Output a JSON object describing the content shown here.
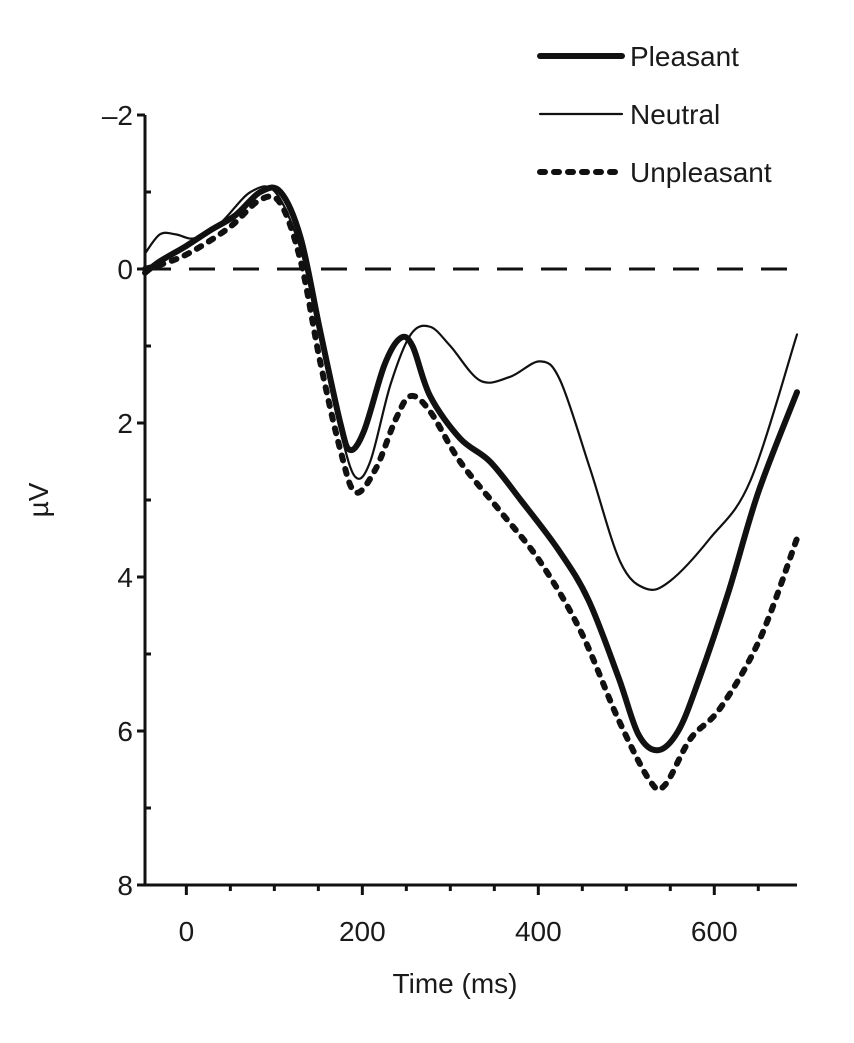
{
  "chart_data": {
    "type": "line",
    "title": "",
    "xlabel": "Time (ms)",
    "ylabel": "µV",
    "xlim": [
      -47,
      694
    ],
    "ylim": [
      -2,
      8
    ],
    "y_inverted": true,
    "xticks": [
      0,
      200,
      400,
      600
    ],
    "yticks": [
      -2,
      0,
      2,
      4,
      6,
      8
    ],
    "tick_labels": {
      "x": [
        "0",
        "200",
        "400",
        "600"
      ],
      "y": [
        "–2",
        "0",
        "2",
        "4",
        "6",
        "8"
      ]
    },
    "grid": false,
    "baseline": 0,
    "legend_position": "top-right",
    "series": [
      {
        "name": "Pleasant",
        "style": "thick",
        "color": "#111111",
        "x": [
          -47,
          -30,
          0,
          27,
          56,
          84,
          107,
          130,
          152,
          175,
          186,
          202,
          225,
          243,
          257,
          277,
          311,
          345,
          380,
          423,
          457,
          491,
          514,
          536,
          559,
          582,
          616,
          650,
          694
        ],
        "y": [
          0.05,
          -0.1,
          -0.3,
          -0.5,
          -0.7,
          -1.0,
          -1.0,
          -0.4,
          0.8,
          2.0,
          2.35,
          2.1,
          1.25,
          0.9,
          1.0,
          1.65,
          2.2,
          2.5,
          3.0,
          3.65,
          4.3,
          5.3,
          6.05,
          6.25,
          6.0,
          5.35,
          4.2,
          2.9,
          1.6
        ]
      },
      {
        "name": "Neutral",
        "style": "thin",
        "color": "#111111",
        "x": [
          -47,
          -30,
          -12,
          10,
          39,
          73,
          101,
          130,
          152,
          175,
          192,
          209,
          232,
          255,
          277,
          300,
          334,
          368,
          402,
          425,
          459,
          493,
          522,
          550,
          595,
          641,
          694
        ],
        "y": [
          -0.2,
          -0.45,
          -0.45,
          -0.4,
          -0.6,
          -1.0,
          -1.0,
          -0.25,
          0.9,
          2.1,
          2.7,
          2.5,
          1.5,
          0.85,
          0.75,
          1.0,
          1.45,
          1.4,
          1.2,
          1.45,
          2.6,
          3.8,
          4.15,
          4.05,
          3.5,
          2.75,
          0.85
        ]
      },
      {
        "name": "Unpleasant",
        "style": "dotted",
        "color": "#111111",
        "x": [
          -47,
          -18,
          10,
          50,
          84,
          107,
          130,
          152,
          175,
          192,
          215,
          238,
          255,
          277,
          311,
          357,
          402,
          448,
          491,
          527,
          544,
          573,
          607,
          652,
          694
        ],
        "y": [
          0,
          -0.1,
          -0.25,
          -0.55,
          -0.9,
          -0.85,
          -0.1,
          1.2,
          2.35,
          2.9,
          2.6,
          1.95,
          1.65,
          1.85,
          2.5,
          3.15,
          3.8,
          4.7,
          5.85,
          6.65,
          6.7,
          6.1,
          5.7,
          4.8,
          3.5
        ]
      }
    ]
  }
}
